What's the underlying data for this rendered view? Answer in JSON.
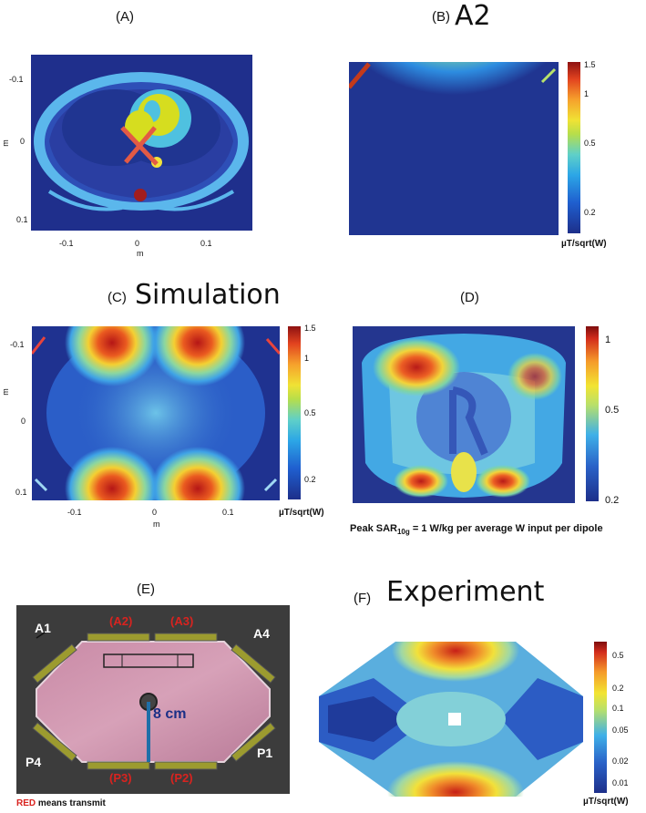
{
  "panels": {
    "a": {
      "label": "(A)",
      "yticks": [
        "-0.1",
        "0",
        "0.1"
      ],
      "xticks": [
        "-0.1",
        "0",
        "0.1"
      ],
      "ylabel": "m",
      "xlabel": "m"
    },
    "b": {
      "label": "(B)",
      "title": "A2",
      "cbar_ticks": [
        "1.5",
        "1",
        "0.5",
        "0.2"
      ],
      "unit": "µT/sqrt(W)"
    },
    "c": {
      "label": "(C)",
      "title": "Simulation",
      "yticks": [
        "-0.1",
        "0",
        "0.1"
      ],
      "xticks": [
        "-0.1",
        "0",
        "0.1"
      ],
      "ylabel": "m",
      "xlabel": "m",
      "cbar_ticks": [
        "1.5",
        "1",
        "0.5",
        "0.2"
      ],
      "unit": "µT/sqrt(W)"
    },
    "d": {
      "label": "(D)",
      "cbar_ticks": [
        "1",
        "0.5",
        "0.2"
      ],
      "caption_pre": "Peak SAR",
      "caption_sub": "10g",
      "caption_post": " = 1 W/kg per average W input per dipole"
    },
    "e": {
      "label": "(E)",
      "ports": [
        "A1",
        "(A2)",
        "(A3)",
        "A4",
        "P4",
        "(P3)",
        "(P2)",
        "P1"
      ],
      "distance": "8 cm",
      "legend_red": "RED",
      "legend_rest": " means transmit"
    },
    "f": {
      "label": "(F)",
      "title": "Experiment",
      "cbar_ticks": [
        "0.5",
        "0.2",
        "0.1",
        "0.05",
        "0.02",
        "0.01"
      ],
      "unit": "µT/sqrt(W)"
    }
  },
  "colors": {
    "red": "#d9231f",
    "navy": "#1b2f86",
    "deep": "#23358f"
  }
}
